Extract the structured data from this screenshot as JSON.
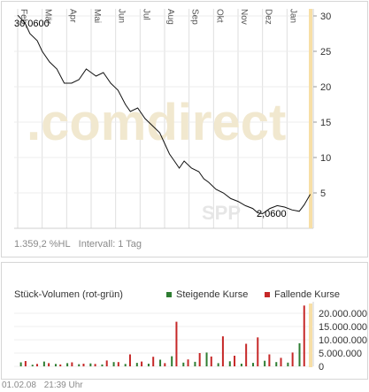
{
  "price_chart": {
    "watermark": ".comdirect",
    "symbol_watermark": "SPP",
    "high_label": "30,0600",
    "low_label": "2,0600",
    "performance": "1.359,2 %HL",
    "interval": "Intervall: 1 Tag",
    "colors": {
      "line": "#000000",
      "grid": "#d9d9d9",
      "highlight": "#f7dfa6",
      "watermark": "#f0e6c8"
    }
  },
  "volume_chart": {
    "title": "Stück-Volumen (rot-grün)",
    "legend_up": "Steigende Kurse",
    "legend_down": "Fallende Kurse",
    "colors": {
      "up": "#2e7d32",
      "down": "#c62828"
    }
  },
  "footer": {
    "date": "01.02.08",
    "time": "21:39 Uhr"
  },
  "chart_data": [
    {
      "type": "line",
      "title": "",
      "xlabel": "",
      "ylabel": "",
      "ylim": [
        0,
        31
      ],
      "y_ticks": [
        5,
        10,
        15,
        20,
        25,
        30
      ],
      "y_tick_labels": [
        "5",
        "10",
        "15",
        "20",
        "25",
        "30"
      ],
      "categories": [
        "Feb",
        "Mär",
        "Apr",
        "Mai",
        "Jun",
        "Jul",
        "Aug",
        "Sep",
        "Okt",
        "Nov",
        "Dez",
        "Jan"
      ],
      "x": [
        0,
        0.3,
        0.5,
        0.8,
        1.0,
        1.3,
        1.6,
        1.9,
        2.2,
        2.5,
        2.8,
        3.0,
        3.2,
        3.5,
        3.8,
        4.1,
        4.4,
        4.6,
        4.9,
        5.2,
        5.5,
        5.8,
        6.0,
        6.2,
        6.4,
        6.6,
        6.8,
        7.1,
        7.4,
        7.6,
        7.8,
        8.1,
        8.4,
        8.7,
        9.0,
        9.3,
        9.6,
        9.8,
        10.0,
        10.3,
        10.6,
        10.9,
        11.2,
        11.5,
        11.7,
        11.95
      ],
      "values": [
        30.1,
        29.0,
        27.5,
        26.5,
        25.0,
        23.5,
        22.5,
        20.5,
        20.5,
        21.0,
        22.5,
        22.0,
        21.5,
        22.0,
        20.5,
        19.5,
        17.5,
        16.5,
        17.0,
        15.5,
        14.5,
        13.5,
        12.0,
        10.5,
        9.5,
        8.5,
        9.5,
        8.5,
        8.0,
        7.0,
        6.5,
        5.5,
        5.0,
        4.2,
        3.8,
        3.2,
        2.8,
        2.2,
        2.06,
        2.8,
        3.2,
        3.0,
        2.6,
        2.4,
        3.3,
        4.8
      ],
      "annotations": [
        "30,0600",
        "2,0600"
      ]
    },
    {
      "type": "bar",
      "title": "Stück-Volumen (rot-grün)",
      "ylim": [
        0,
        23000000
      ],
      "y_ticks": [
        0,
        5000000,
        10000000,
        15000000,
        20000000
      ],
      "y_tick_labels": [
        "0",
        "5.000.000",
        "10.000.000",
        "15.000.000",
        "20.000.000"
      ],
      "series": [
        {
          "name": "Steigende Kurse",
          "values": [
            1500000,
            600000,
            1800000,
            900000,
            1200000,
            800000,
            1100000,
            700000,
            1600000,
            900000,
            1300000,
            1000000,
            2500000,
            3800000,
            1400000,
            1700000,
            5200000,
            1200000,
            1900000,
            1000000,
            1300000,
            2100000,
            1600000,
            1400000,
            8700000
          ]
        },
        {
          "name": "Fallende Kurse",
          "values": [
            2000000,
            900000,
            1200000,
            700000,
            1500000,
            1000000,
            900000,
            2200000,
            1600000,
            4500000,
            1800000,
            3600000,
            1200000,
            16800000,
            2600000,
            5000000,
            3700000,
            11300000,
            4000000,
            8500000,
            10900000,
            4500000,
            3200000,
            5200000,
            22900000
          ]
        }
      ]
    }
  ]
}
